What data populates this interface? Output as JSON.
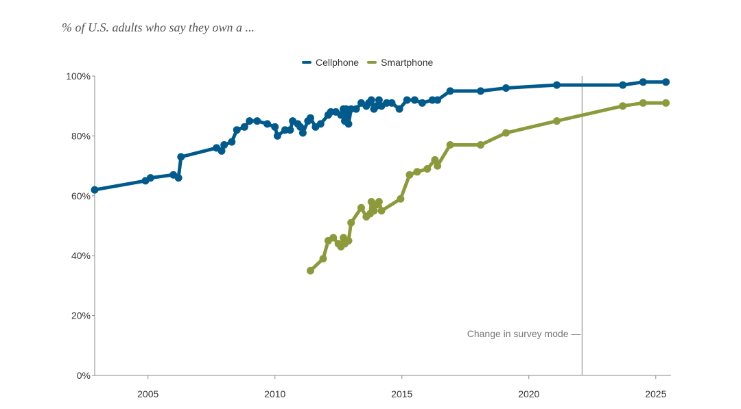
{
  "chart_data": {
    "type": "line",
    "subtitle": "% of U.S. adults who say they own a ...",
    "ylim": [
      0,
      100
    ],
    "xlim": [
      2002.9,
      2025.6
    ],
    "yticks": [
      0,
      20,
      40,
      60,
      80,
      100
    ],
    "ytick_labels": [
      "0%",
      "20%",
      "40%",
      "60%",
      "80%",
      "100%"
    ],
    "xticks": [
      2005,
      2010,
      2015,
      2020,
      2025
    ],
    "xtick_labels": [
      "2005",
      "2010",
      "2015",
      "2020",
      "2025"
    ],
    "annotation": {
      "label": "Change in survey mode —",
      "x": 2022.1
    },
    "series": [
      {
        "name": "Cellphone",
        "color": "#005a8c",
        "points": [
          [
            2002.9,
            62
          ],
          [
            2004.9,
            65
          ],
          [
            2005.1,
            66
          ],
          [
            2006.0,
            67
          ],
          [
            2006.2,
            66
          ],
          [
            2006.3,
            73
          ],
          [
            2007.7,
            76
          ],
          [
            2007.9,
            75
          ],
          [
            2008.0,
            77
          ],
          [
            2008.3,
            78
          ],
          [
            2008.5,
            82
          ],
          [
            2008.8,
            83
          ],
          [
            2009.0,
            85
          ],
          [
            2009.3,
            85
          ],
          [
            2009.7,
            84
          ],
          [
            2010.0,
            83
          ],
          [
            2010.1,
            80
          ],
          [
            2010.4,
            82
          ],
          [
            2010.6,
            82
          ],
          [
            2010.7,
            85
          ],
          [
            2010.9,
            84
          ],
          [
            2011.0,
            83
          ],
          [
            2011.1,
            81
          ],
          [
            2011.3,
            85
          ],
          [
            2011.4,
            86
          ],
          [
            2011.6,
            83
          ],
          [
            2011.8,
            84
          ],
          [
            2012.1,
            87
          ],
          [
            2012.2,
            88
          ],
          [
            2012.4,
            88
          ],
          [
            2012.6,
            87
          ],
          [
            2012.7,
            89
          ],
          [
            2012.75,
            85
          ],
          [
            2012.8,
            89
          ],
          [
            2012.85,
            87
          ],
          [
            2012.9,
            84
          ],
          [
            2013.0,
            89
          ],
          [
            2013.2,
            89
          ],
          [
            2013.4,
            91
          ],
          [
            2013.6,
            90
          ],
          [
            2013.7,
            91
          ],
          [
            2013.8,
            92
          ],
          [
            2013.9,
            89
          ],
          [
            2014.0,
            90
          ],
          [
            2014.1,
            92
          ],
          [
            2014.2,
            90
          ],
          [
            2014.4,
            91
          ],
          [
            2014.6,
            91
          ],
          [
            2014.9,
            89
          ],
          [
            2015.2,
            92
          ],
          [
            2015.5,
            92
          ],
          [
            2015.8,
            91
          ],
          [
            2016.2,
            92
          ],
          [
            2016.4,
            92
          ],
          [
            2016.9,
            95
          ],
          [
            2018.1,
            95
          ],
          [
            2019.1,
            96
          ],
          [
            2021.1,
            97
          ],
          [
            2023.7,
            97
          ],
          [
            2024.5,
            98
          ],
          [
            2025.4,
            98
          ]
        ]
      },
      {
        "name": "Smartphone",
        "color": "#8c9a3c",
        "points": [
          [
            2011.4,
            35
          ],
          [
            2011.9,
            39
          ],
          [
            2012.1,
            45
          ],
          [
            2012.3,
            46
          ],
          [
            2012.5,
            44
          ],
          [
            2012.6,
            43
          ],
          [
            2012.7,
            46
          ],
          [
            2012.75,
            44
          ],
          [
            2012.9,
            45
          ],
          [
            2013.0,
            51
          ],
          [
            2013.4,
            56
          ],
          [
            2013.6,
            53
          ],
          [
            2013.75,
            54
          ],
          [
            2013.8,
            58
          ],
          [
            2013.9,
            55
          ],
          [
            2014.0,
            57
          ],
          [
            2014.1,
            58
          ],
          [
            2014.2,
            55
          ],
          [
            2014.95,
            59
          ],
          [
            2015.3,
            67
          ],
          [
            2015.6,
            68
          ],
          [
            2016.0,
            69
          ],
          [
            2016.3,
            72
          ],
          [
            2016.4,
            70
          ],
          [
            2016.9,
            77
          ],
          [
            2018.1,
            77
          ],
          [
            2019.1,
            81
          ],
          [
            2021.1,
            85
          ],
          [
            2023.7,
            90
          ],
          [
            2024.5,
            91
          ],
          [
            2025.4,
            91
          ]
        ]
      }
    ]
  }
}
